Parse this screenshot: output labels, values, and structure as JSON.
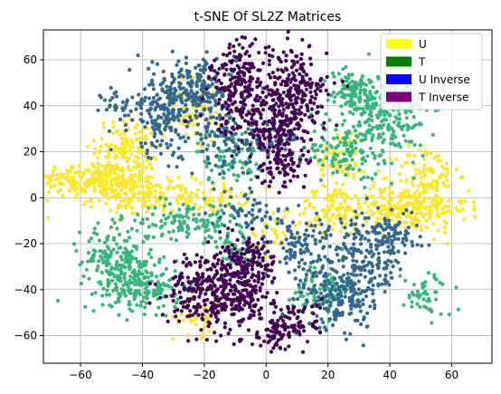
{
  "chart_data": {
    "type": "scatter",
    "title": "t-SNE Of SL2Z Matrices",
    "xlabel": "",
    "ylabel": "",
    "xlim": [
      -72,
      73
    ],
    "ylim": [
      -72,
      73
    ],
    "xticks": [
      -60,
      -40,
      -20,
      0,
      20,
      40,
      60
    ],
    "yticks": [
      -60,
      -40,
      -20,
      0,
      20,
      40,
      60
    ],
    "xtick_labels": [
      "−60",
      "−40",
      "−20",
      "0",
      "20",
      "40",
      "60"
    ],
    "ytick_labels": [
      "−60",
      "−40",
      "−20",
      "0",
      "20",
      "40",
      "60"
    ],
    "grid": true,
    "legend_position": "top-right",
    "legend": [
      {
        "label": "U",
        "color": "#ffff00"
      },
      {
        "label": "T",
        "color": "#008000"
      },
      {
        "label": "U Inverse",
        "color": "#0000ff"
      },
      {
        "label": "T Inverse",
        "color": "#800080"
      }
    ],
    "point_colors": {
      "U": "#fde725",
      "T": "#35b779",
      "U Inverse": "#31688e",
      "T Inverse": "#440154"
    },
    "series": [
      {
        "name": "U",
        "color": "#fde725",
        "clusters": [
          {
            "x": -55,
            "y": 8,
            "sx": 10,
            "sy": 4,
            "n": 260
          },
          {
            "x": -45,
            "y": 22,
            "sx": 5,
            "sy": 6,
            "n": 120
          },
          {
            "x": -40,
            "y": 0,
            "sx": 8,
            "sy": 4,
            "n": 140
          },
          {
            "x": -18,
            "y": 0,
            "sx": 6,
            "sy": 3,
            "n": 70
          },
          {
            "x": -22,
            "y": 40,
            "sx": 4,
            "sy": 8,
            "n": 80
          },
          {
            "x": 45,
            "y": -5,
            "sx": 10,
            "sy": 5,
            "n": 260
          },
          {
            "x": 52,
            "y": 10,
            "sx": 5,
            "sy": 6,
            "n": 90
          },
          {
            "x": 22,
            "y": -5,
            "sx": 6,
            "sy": 5,
            "n": 90
          },
          {
            "x": 25,
            "y": 18,
            "sx": 4,
            "sy": 6,
            "n": 60
          },
          {
            "x": -22,
            "y": -52,
            "sx": 4,
            "sy": 4,
            "n": 40
          },
          {
            "x": 3,
            "y": -15,
            "sx": 4,
            "sy": 5,
            "n": 40
          }
        ]
      },
      {
        "name": "T",
        "color": "#35b779",
        "clusters": [
          {
            "x": -48,
            "y": -28,
            "sx": 6,
            "sy": 8,
            "n": 220
          },
          {
            "x": -38,
            "y": -40,
            "sx": 6,
            "sy": 5,
            "n": 140
          },
          {
            "x": -25,
            "y": -10,
            "sx": 8,
            "sy": 4,
            "n": 130
          },
          {
            "x": -12,
            "y": 18,
            "sx": 5,
            "sy": 6,
            "n": 80
          },
          {
            "x": 40,
            "y": 35,
            "sx": 6,
            "sy": 10,
            "n": 220
          },
          {
            "x": 28,
            "y": 45,
            "sx": 5,
            "sy": 5,
            "n": 120
          },
          {
            "x": 25,
            "y": 20,
            "sx": 6,
            "sy": 6,
            "n": 100
          },
          {
            "x": 18,
            "y": -40,
            "sx": 5,
            "sy": 6,
            "n": 80
          },
          {
            "x": -10,
            "y": -25,
            "sx": 5,
            "sy": 5,
            "n": 60
          },
          {
            "x": 52,
            "y": -42,
            "sx": 4,
            "sy": 5,
            "n": 50
          }
        ]
      },
      {
        "name": "U Inverse",
        "color": "#31688e",
        "clusters": [
          {
            "x": -32,
            "y": 38,
            "sx": 6,
            "sy": 10,
            "n": 230
          },
          {
            "x": -20,
            "y": 48,
            "sx": 5,
            "sy": 6,
            "n": 140
          },
          {
            "x": -12,
            "y": 25,
            "sx": 6,
            "sy": 8,
            "n": 130
          },
          {
            "x": 30,
            "y": -30,
            "sx": 7,
            "sy": 10,
            "n": 230
          },
          {
            "x": 22,
            "y": -45,
            "sx": 5,
            "sy": 6,
            "n": 130
          },
          {
            "x": 12,
            "y": -22,
            "sx": 5,
            "sy": 7,
            "n": 100
          },
          {
            "x": 40,
            "y": -15,
            "sx": 5,
            "sy": 5,
            "n": 80
          },
          {
            "x": 5,
            "y": 25,
            "sx": 5,
            "sy": 5,
            "n": 60
          },
          {
            "x": -5,
            "y": -8,
            "sx": 6,
            "sy": 5,
            "n": 60
          },
          {
            "x": -45,
            "y": 40,
            "sx": 4,
            "sy": 4,
            "n": 40
          }
        ]
      },
      {
        "name": "T Inverse",
        "color": "#440154",
        "clusters": [
          {
            "x": -8,
            "y": 48,
            "sx": 5,
            "sy": 10,
            "n": 240
          },
          {
            "x": 10,
            "y": 45,
            "sx": 5,
            "sy": 10,
            "n": 230
          },
          {
            "x": 2,
            "y": 30,
            "sx": 5,
            "sy": 6,
            "n": 120
          },
          {
            "x": 5,
            "y": 15,
            "sx": 4,
            "sy": 5,
            "n": 80
          },
          {
            "x": -20,
            "y": -40,
            "sx": 6,
            "sy": 8,
            "n": 240
          },
          {
            "x": -8,
            "y": -40,
            "sx": 5,
            "sy": 8,
            "n": 200
          },
          {
            "x": -5,
            "y": -25,
            "sx": 4,
            "sy": 5,
            "n": 80
          },
          {
            "x": 8,
            "y": -55,
            "sx": 5,
            "sy": 5,
            "n": 100
          },
          {
            "x": 2,
            "y": -62,
            "sx": 3,
            "sy": 3,
            "n": 30
          }
        ]
      }
    ]
  }
}
